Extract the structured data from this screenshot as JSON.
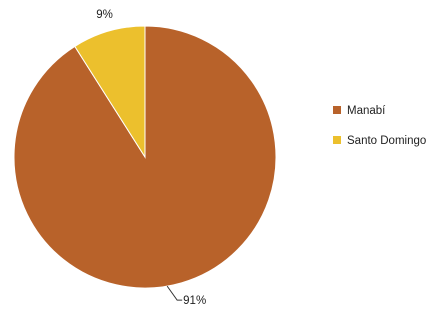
{
  "chart_data": {
    "type": "pie",
    "title": "",
    "slices": [
      {
        "label": "Manabí",
        "value": 91,
        "display": "91%",
        "color": "#b8622a"
      },
      {
        "label": "Santo Domingo",
        "value": 9,
        "display": "9%",
        "color": "#ecc02d"
      }
    ],
    "legend_position": "right"
  }
}
